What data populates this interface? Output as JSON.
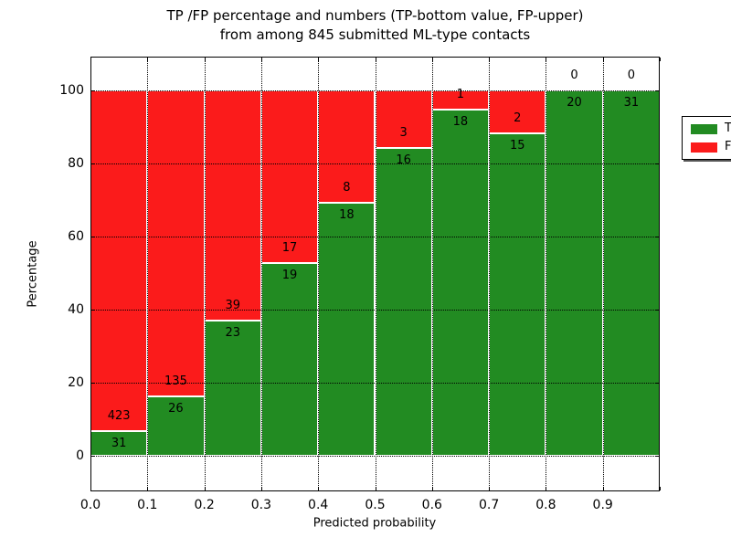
{
  "figure": {
    "title_line1": "TP /FP percentage and numbers (TP-bottom value, FP-upper)",
    "title_line2": "from among 845 submitted ML-type contacts"
  },
  "chart_data": {
    "type": "bar",
    "subtype": "stacked-percentage",
    "title": "TP /FP percentage and numbers (TP-bottom value, FP-upper) from among 845 submitted ML-type contacts",
    "xlabel": "Predicted probability",
    "ylabel": "Percentage",
    "total_contacts": 845,
    "grid": true,
    "xlim": [
      0.0,
      1.0
    ],
    "ylim": [
      -10,
      110
    ],
    "bin_width": 0.1,
    "bin_starts": [
      0.0,
      0.1,
      0.2,
      0.3,
      0.4,
      0.5,
      0.6,
      0.7,
      0.8,
      0.9
    ],
    "x_tick_labels": [
      "0.0",
      "0.1",
      "0.2",
      "0.3",
      "0.4",
      "0.5",
      "0.6",
      "0.7",
      "0.8",
      "0.9"
    ],
    "y_tick_values": [
      0,
      20,
      40,
      60,
      80,
      100
    ],
    "y_tick_labels": [
      "0",
      "20",
      "40",
      "60",
      "80",
      "100"
    ],
    "series": [
      {
        "name": "TP",
        "color": "#228b22",
        "counts": [
          31,
          26,
          23,
          19,
          18,
          16,
          18,
          15,
          20,
          31
        ]
      },
      {
        "name": "FP",
        "color": "#fb1b1b",
        "counts": [
          423,
          135,
          39,
          17,
          8,
          3,
          1,
          2,
          0,
          0
        ]
      }
    ],
    "legend": {
      "position": "upper-right",
      "entries": [
        "TP",
        "FP"
      ]
    }
  }
}
